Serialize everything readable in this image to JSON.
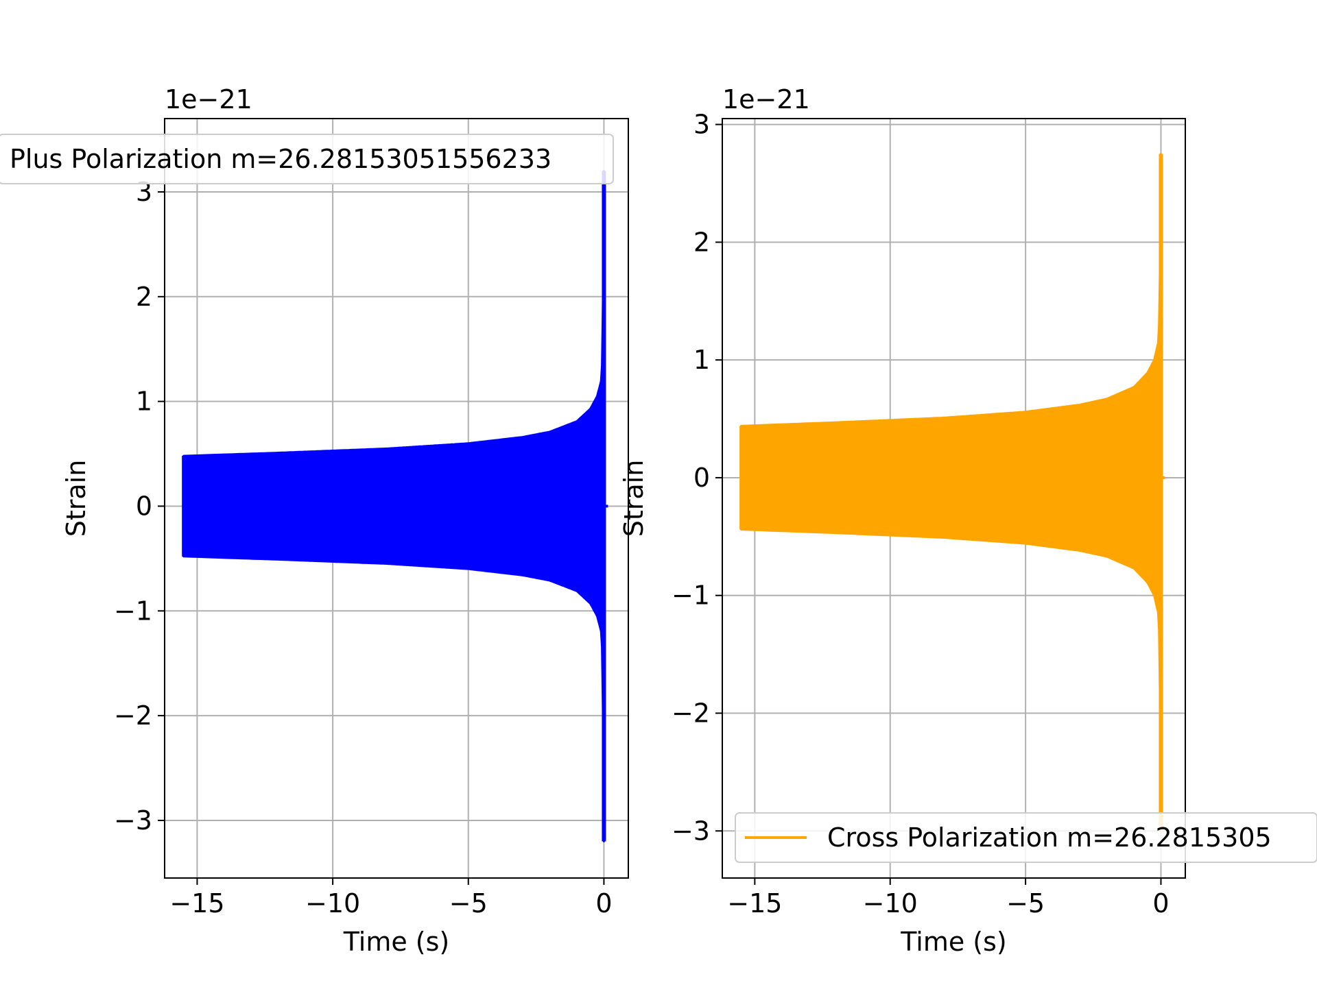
{
  "chart_data": [
    {
      "type": "line",
      "xlabel": "Time (s)",
      "ylabel": "Strain",
      "offset_text": "1e−21",
      "y_scale": 1e-21,
      "xlim": [
        -16.2,
        0.9
      ],
      "ylim": [
        -3.55,
        3.7
      ],
      "xticks": [
        -15,
        -10,
        -5,
        0
      ],
      "xtick_labels": [
        "−15",
        "−10",
        "−5",
        "0"
      ],
      "yticks": [
        -3,
        -2,
        -1,
        0,
        1,
        2,
        3
      ],
      "ytick_labels": [
        "−3",
        "−2",
        "−1",
        "0",
        "1",
        "2",
        "3"
      ],
      "grid": true,
      "legend_position": "upper left",
      "series": [
        {
          "name": "Plus Polarization m=26.28153051556233",
          "color": "#0000ff",
          "style": "dense oscillating chirp (filled envelope)",
          "t_start": -15.5,
          "t_peak": 0.0,
          "t_end": 0.15,
          "envelope_t": [
            -15.5,
            -12,
            -8,
            -5,
            -3,
            -2,
            -1,
            -0.5,
            -0.25,
            -0.1,
            -0.05,
            0.0
          ],
          "envelope_upper": [
            0.48,
            0.51,
            0.55,
            0.6,
            0.66,
            0.71,
            0.81,
            0.93,
            1.05,
            1.2,
            1.45,
            3.2
          ],
          "envelope_lower": [
            -0.48,
            -0.51,
            -0.55,
            -0.6,
            -0.66,
            -0.71,
            -0.81,
            -0.93,
            -1.05,
            -1.2,
            -1.45,
            -3.2
          ]
        }
      ]
    },
    {
      "type": "line",
      "xlabel": "Time (s)",
      "ylabel": "Strain",
      "offset_text": "1e−21",
      "y_scale": 1e-21,
      "xlim": [
        -16.2,
        0.9
      ],
      "ylim": [
        -3.4,
        3.05
      ],
      "xticks": [
        -15,
        -10,
        -5,
        0
      ],
      "xtick_labels": [
        "−15",
        "−10",
        "−5",
        "0"
      ],
      "yticks": [
        -3,
        -2,
        -1,
        0,
        1,
        2,
        3
      ],
      "ytick_labels": [
        "−3",
        "−2",
        "−1",
        "0",
        "1",
        "2",
        "3"
      ],
      "grid": true,
      "legend_position": "lower right",
      "series": [
        {
          "name": "Cross Polarization m=26.2815305",
          "color": "#ffa500",
          "style": "dense oscillating chirp (filled envelope)",
          "t_start": -15.5,
          "t_peak": 0.0,
          "t_end": 0.15,
          "envelope_t": [
            -15.5,
            -12,
            -8,
            -5,
            -3,
            -2,
            -1,
            -0.5,
            -0.25,
            -0.1,
            -0.05,
            0.0
          ],
          "envelope_upper": [
            0.44,
            0.47,
            0.51,
            0.56,
            0.62,
            0.67,
            0.77,
            0.89,
            1.0,
            1.15,
            1.4,
            2.75
          ],
          "envelope_lower": [
            -0.44,
            -0.47,
            -0.51,
            -0.56,
            -0.62,
            -0.67,
            -0.77,
            -0.89,
            -1.0,
            -1.15,
            -1.4,
            -3.0
          ]
        }
      ]
    }
  ]
}
